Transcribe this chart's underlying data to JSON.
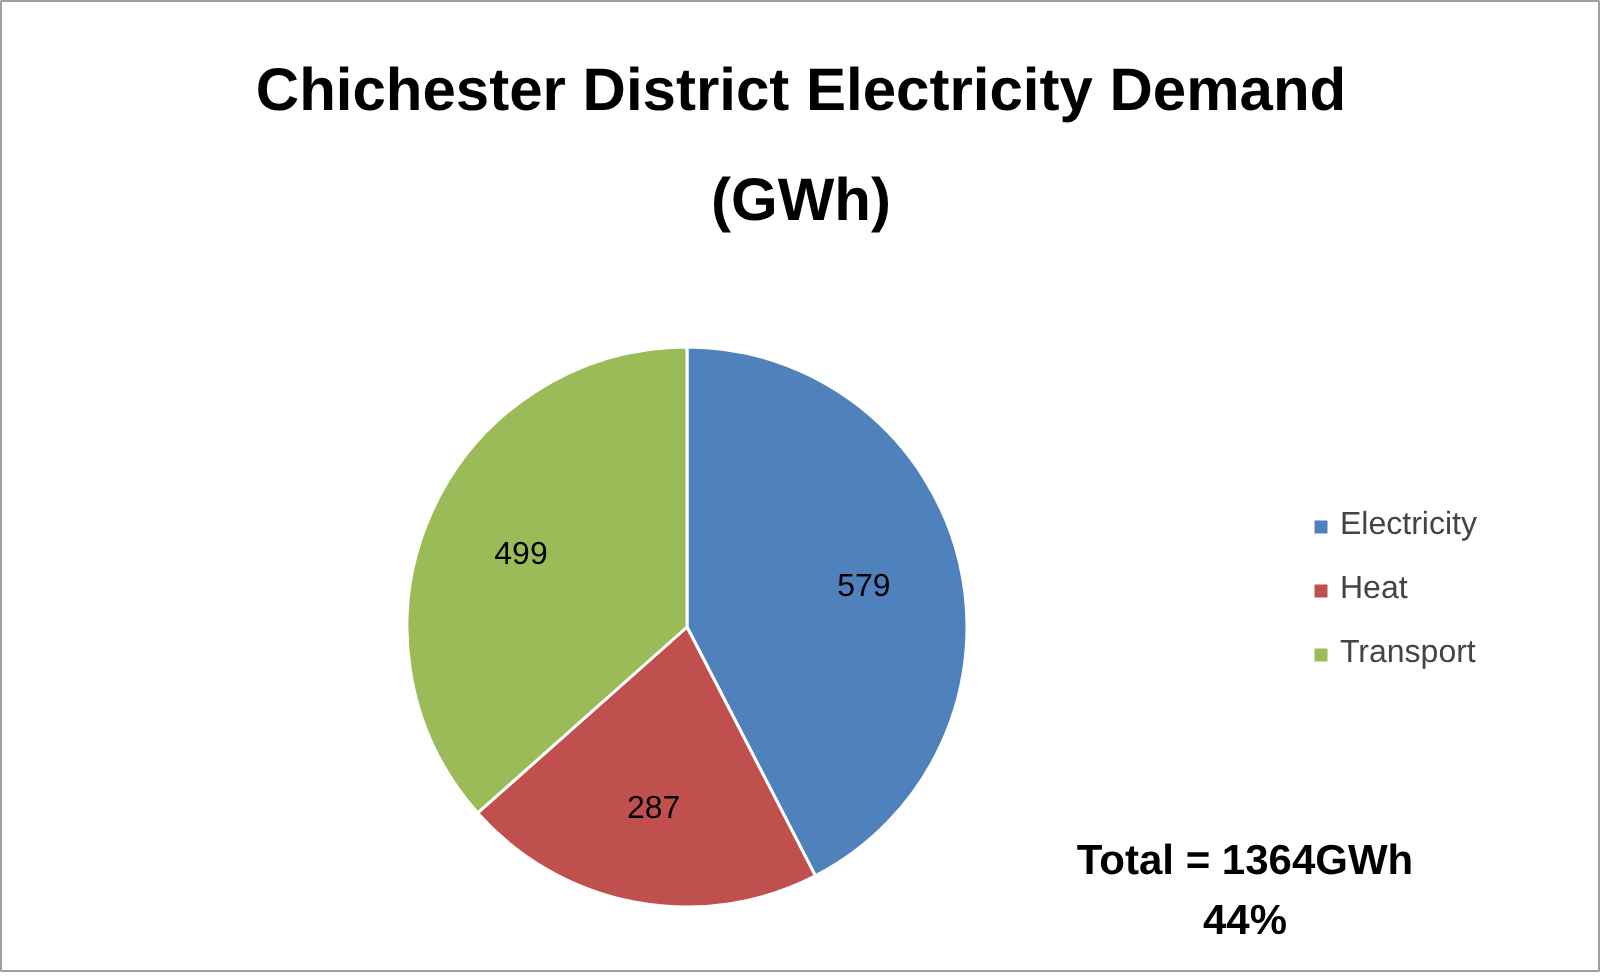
{
  "chart_data": {
    "type": "pie",
    "title": "Chichester District Electricity Demand (GWh)",
    "categories": [
      "Electricity",
      "Heat",
      "Transport"
    ],
    "values": [
      579,
      287,
      499
    ],
    "colors": [
      "#4f81bd",
      "#c0504d",
      "#9bbb59"
    ],
    "data_labels": true,
    "legend": "right",
    "annotations": [
      "Total = 1364GWh\n44%"
    ]
  }
}
